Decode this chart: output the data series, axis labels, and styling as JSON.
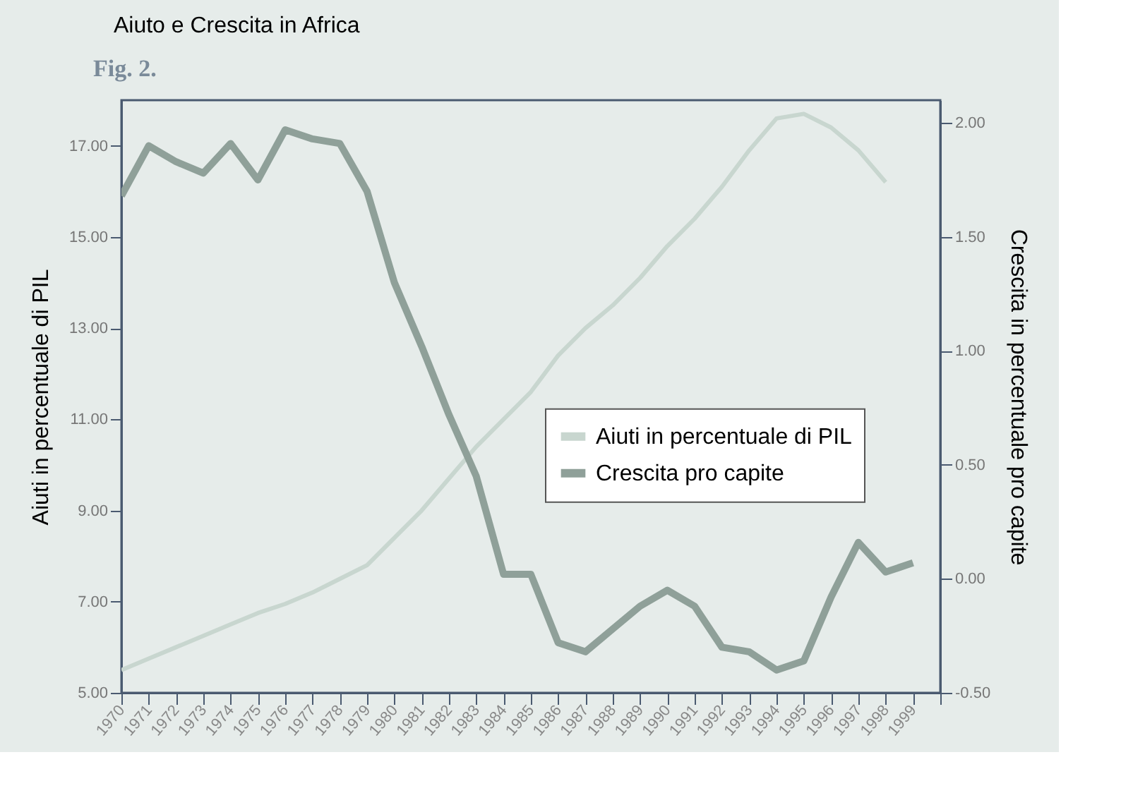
{
  "chart_data": {
    "type": "line",
    "title": "Aiuto e Crescita in Africa",
    "annotations": [
      "Fig. 2."
    ],
    "ylabel": "Aiuti in percentuale di PIL",
    "y2label": "Crescita in percentuale pro capite",
    "x": [
      1970,
      1971,
      1972,
      1973,
      1974,
      1975,
      1976,
      1977,
      1978,
      1979,
      1980,
      1981,
      1982,
      1983,
      1984,
      1985,
      1986,
      1987,
      1988,
      1989,
      1990,
      1991,
      1992,
      1993,
      1994,
      1995,
      1996,
      1997,
      1998,
      1999
    ],
    "series": [
      {
        "name": "Aiuti in percentuale di PIL",
        "color": "#c8d6cf",
        "values": [
          5.5,
          5.75,
          6.0,
          6.25,
          6.5,
          6.75,
          6.95,
          7.2,
          7.5,
          7.8,
          8.4,
          9.0,
          9.7,
          10.4,
          11.0,
          11.6,
          12.4,
          13.0,
          13.5,
          14.1,
          14.8,
          15.4,
          16.1,
          16.9,
          17.6,
          17.7,
          17.4,
          16.9,
          16.2,
          null
        ]
      },
      {
        "name": "Crescita pro capite",
        "color": "#8fa099",
        "axis": "y2",
        "values": [
          1.68,
          1.9,
          1.83,
          1.78,
          1.91,
          1.75,
          1.97,
          1.93,
          1.91,
          1.7,
          1.3,
          1.02,
          0.72,
          0.45,
          0.02,
          0.02,
          -0.28,
          -0.32,
          -0.22,
          -0.12,
          -0.05,
          -0.12,
          -0.3,
          -0.32,
          -0.4,
          -0.36,
          -0.08,
          0.16,
          0.03,
          0.07
        ]
      }
    ],
    "xlim": [
      1970,
      2000
    ],
    "xticks": [
      1970,
      1971,
      1972,
      1973,
      1974,
      1975,
      1976,
      1977,
      1978,
      1979,
      1980,
      1981,
      1982,
      1983,
      1984,
      1985,
      1986,
      1987,
      1988,
      1989,
      1990,
      1991,
      1992,
      1993,
      1994,
      1995,
      1996,
      1997,
      1998,
      1999,
      {
        "value": 2000,
        "label": null
      }
    ],
    "ylim": [
      5,
      18
    ],
    "yticks": [
      {
        "value": 5,
        "label": "5.00"
      },
      {
        "value": 7,
        "label": "7.00"
      },
      {
        "value": 9,
        "label": "9.00"
      },
      {
        "value": 11,
        "label": "11.00"
      },
      {
        "value": 13,
        "label": "13.00"
      },
      {
        "value": 15,
        "label": "15.00"
      },
      {
        "value": 17,
        "label": "17.00"
      }
    ],
    "y2lim": [
      -0.5,
      2.1
    ],
    "y2ticks": [
      {
        "value": -0.5,
        "label": "-0.50"
      },
      {
        "value": 0,
        "label": "0.00"
      },
      {
        "value": 0.5,
        "label": "0.50"
      },
      {
        "value": 1,
        "label": "1.00"
      },
      {
        "value": 1.5,
        "label": "1.50"
      },
      {
        "value": 2,
        "label": "2.00"
      }
    ],
    "grid": false,
    "legend": "right",
    "marker": "none",
    "line_style": "solid"
  }
}
